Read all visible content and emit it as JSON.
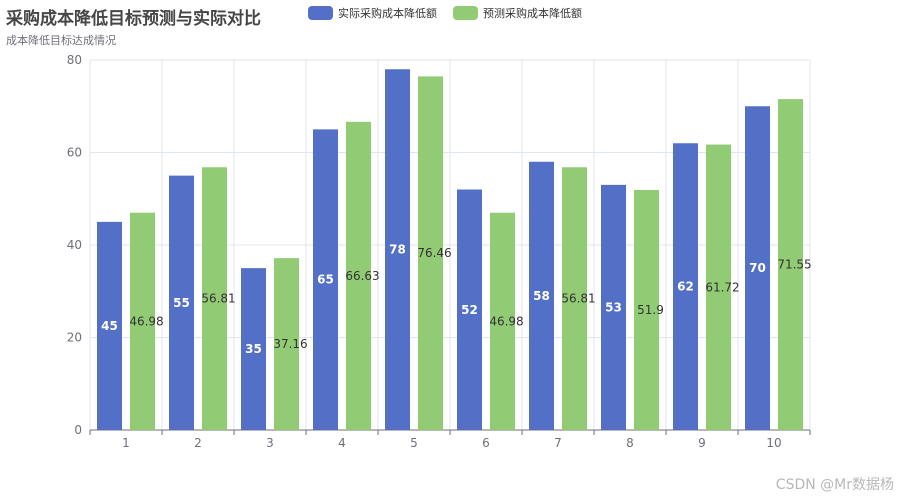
{
  "chart_data": {
    "type": "bar",
    "title": "采购成本降低目标预测与实际对比",
    "subtitle": "成本降低目标达成情况",
    "categories": [
      "1",
      "2",
      "3",
      "4",
      "5",
      "6",
      "7",
      "8",
      "9",
      "10"
    ],
    "series": [
      {
        "name": "实际采购成本降低额",
        "color": "#5470c6",
        "label_color": "#ffffff",
        "values": [
          45,
          55,
          35,
          65,
          78,
          52,
          58,
          53,
          62,
          70
        ]
      },
      {
        "name": "预测采购成本降低额",
        "color": "#91cc75",
        "label_color": "#333333",
        "values": [
          46.98,
          56.81,
          37.16,
          66.63,
          76.46,
          46.98,
          56.81,
          51.9,
          61.72,
          71.55
        ]
      }
    ],
    "ylim": [
      0,
      80
    ],
    "yticks": [
      0,
      20,
      40,
      60,
      80
    ],
    "xlabel": "",
    "ylabel": "",
    "grid": true,
    "legend_position": "top"
  },
  "watermark": "CSDN @Mr数据杨"
}
